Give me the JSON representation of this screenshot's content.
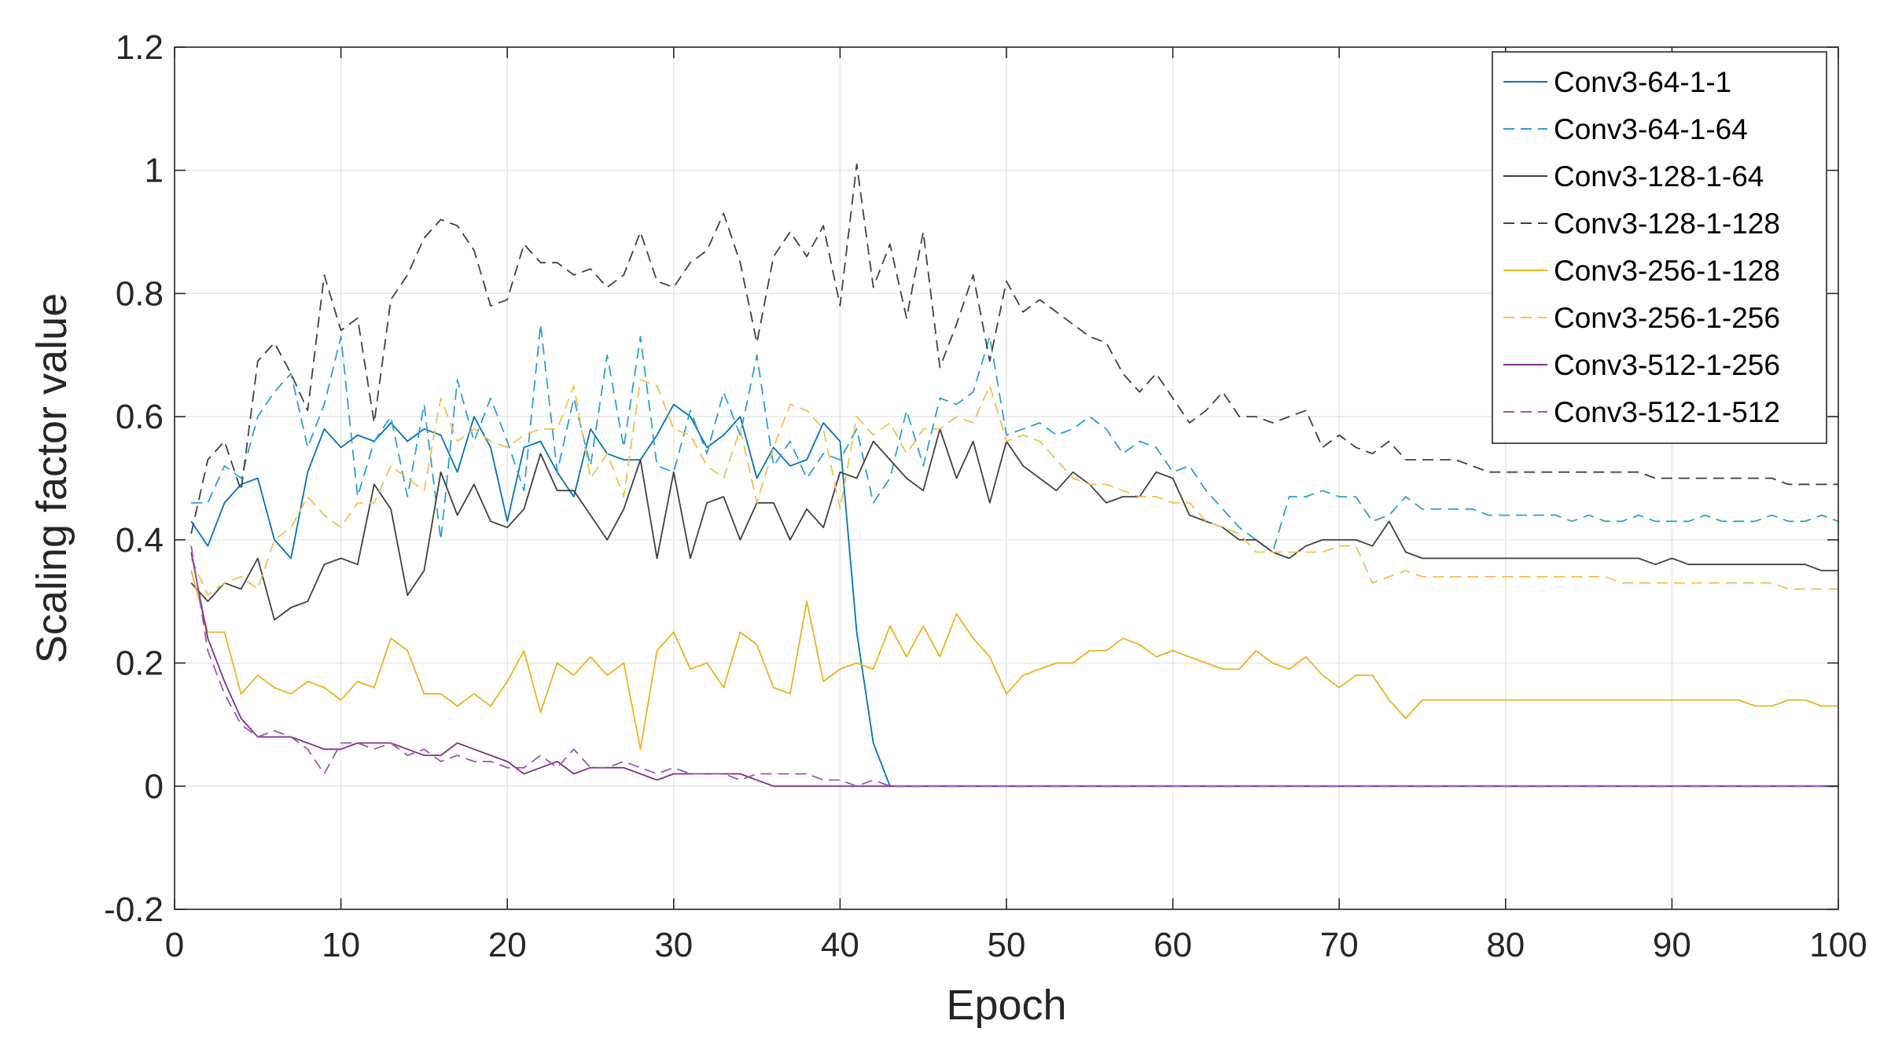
{
  "chart_data": {
    "type": "line",
    "title": "",
    "xlabel": "Epoch",
    "ylabel": "Scaling factor value",
    "xlim": [
      0,
      100
    ],
    "ylim": [
      -0.2,
      1.2
    ],
    "xticks": [
      0,
      10,
      20,
      30,
      40,
      50,
      60,
      70,
      80,
      90,
      100
    ],
    "yticks": [
      -0.2,
      0,
      0.2,
      0.4,
      0.6,
      0.8,
      1,
      1.2
    ],
    "xtick_labels": [
      "0",
      "10",
      "20",
      "30",
      "40",
      "50",
      "60",
      "70",
      "80",
      "90",
      "100"
    ],
    "ytick_labels": [
      "-0.2",
      "0",
      "0.2",
      "0.4",
      "0.6",
      "0.8",
      "1",
      "1.2"
    ],
    "grid": true,
    "legend_position": "top-right",
    "series": [
      {
        "name": "Conv3-64-1-1",
        "color": "#0072bd",
        "dash": "solid",
        "values": [
          0.43,
          0.39,
          0.46,
          0.49,
          0.5,
          0.4,
          0.37,
          0.51,
          0.58,
          0.55,
          0.57,
          0.56,
          0.59,
          0.56,
          0.58,
          0.57,
          0.51,
          0.6,
          0.55,
          0.43,
          0.55,
          0.56,
          0.51,
          0.47,
          0.58,
          0.54,
          0.53,
          0.53,
          0.57,
          0.62,
          0.6,
          0.55,
          0.57,
          0.6,
          0.5,
          0.55,
          0.52,
          0.53,
          0.59,
          0.56,
          0.25,
          0.07,
          0.0,
          0,
          0,
          0,
          0,
          0,
          0,
          0,
          0,
          0,
          0,
          0,
          0,
          0,
          0,
          0,
          0,
          0,
          0,
          0,
          0,
          0,
          0,
          0,
          0,
          0,
          0,
          0,
          0,
          0,
          0,
          0,
          0,
          0,
          0,
          0,
          0,
          0,
          0,
          0,
          0,
          0,
          0,
          0,
          0,
          0,
          0,
          0,
          0,
          0,
          0,
          0,
          0,
          0,
          0,
          0,
          0,
          0
        ]
      },
      {
        "name": "Conv3-64-1-64",
        "color": "#2b9fd6",
        "dash": "dashed",
        "values": [
          0.46,
          0.46,
          0.52,
          0.5,
          0.6,
          0.64,
          0.67,
          0.55,
          0.62,
          0.73,
          0.47,
          0.56,
          0.6,
          0.47,
          0.62,
          0.4,
          0.66,
          0.56,
          0.63,
          0.56,
          0.48,
          0.75,
          0.51,
          0.63,
          0.52,
          0.7,
          0.55,
          0.73,
          0.52,
          0.51,
          0.61,
          0.54,
          0.64,
          0.57,
          0.7,
          0.52,
          0.56,
          0.5,
          0.54,
          0.53,
          0.58,
          0.46,
          0.5,
          0.61,
          0.52,
          0.63,
          0.62,
          0.64,
          0.73,
          0.57,
          0.58,
          0.59,
          0.57,
          0.58,
          0.6,
          0.58,
          0.54,
          0.56,
          0.55,
          0.51,
          0.52,
          0.48,
          0.45,
          0.42,
          0.4,
          0.38,
          0.47,
          0.47,
          0.48,
          0.47,
          0.47,
          0.43,
          0.44,
          0.47,
          0.45,
          0.45,
          0.45,
          0.45,
          0.44,
          0.44,
          0.44,
          0.44,
          0.44,
          0.43,
          0.44,
          0.43,
          0.43,
          0.44,
          0.43,
          0.43,
          0.43,
          0.44,
          0.43,
          0.43,
          0.43,
          0.44,
          0.43,
          0.43,
          0.44,
          0.43
        ]
      },
      {
        "name": "Conv3-128-1-64",
        "color": "#404040",
        "dash": "solid",
        "values": [
          0.33,
          0.3,
          0.33,
          0.32,
          0.37,
          0.27,
          0.29,
          0.3,
          0.36,
          0.37,
          0.36,
          0.49,
          0.45,
          0.31,
          0.35,
          0.51,
          0.44,
          0.49,
          0.43,
          0.42,
          0.45,
          0.54,
          0.48,
          0.48,
          0.44,
          0.4,
          0.45,
          0.53,
          0.37,
          0.51,
          0.37,
          0.46,
          0.47,
          0.4,
          0.46,
          0.46,
          0.4,
          0.45,
          0.42,
          0.51,
          0.5,
          0.56,
          0.53,
          0.5,
          0.48,
          0.58,
          0.5,
          0.56,
          0.46,
          0.56,
          0.52,
          0.5,
          0.48,
          0.51,
          0.49,
          0.46,
          0.47,
          0.47,
          0.51,
          0.5,
          0.44,
          0.43,
          0.42,
          0.4,
          0.4,
          0.38,
          0.37,
          0.39,
          0.4,
          0.4,
          0.4,
          0.39,
          0.43,
          0.38,
          0.37,
          0.37,
          0.37,
          0.37,
          0.37,
          0.37,
          0.37,
          0.37,
          0.37,
          0.37,
          0.37,
          0.37,
          0.37,
          0.37,
          0.36,
          0.37,
          0.36,
          0.36,
          0.36,
          0.36,
          0.36,
          0.36,
          0.36,
          0.36,
          0.35,
          0.35
        ]
      },
      {
        "name": "Conv3-128-1-128",
        "color": "#404040",
        "dash": "dashed",
        "values": [
          0.41,
          0.53,
          0.56,
          0.48,
          0.69,
          0.72,
          0.67,
          0.61,
          0.83,
          0.74,
          0.76,
          0.59,
          0.79,
          0.83,
          0.89,
          0.92,
          0.91,
          0.87,
          0.78,
          0.79,
          0.88,
          0.85,
          0.85,
          0.83,
          0.84,
          0.81,
          0.83,
          0.9,
          0.82,
          0.81,
          0.85,
          0.87,
          0.93,
          0.85,
          0.72,
          0.86,
          0.9,
          0.86,
          0.91,
          0.78,
          1.01,
          0.81,
          0.88,
          0.76,
          0.9,
          0.68,
          0.75,
          0.83,
          0.69,
          0.82,
          0.77,
          0.79,
          0.77,
          0.75,
          0.73,
          0.72,
          0.67,
          0.64,
          0.67,
          0.63,
          0.59,
          0.61,
          0.64,
          0.6,
          0.6,
          0.59,
          0.6,
          0.61,
          0.55,
          0.57,
          0.55,
          0.54,
          0.56,
          0.53,
          0.53,
          0.53,
          0.53,
          0.52,
          0.51,
          0.51,
          0.51,
          0.51,
          0.51,
          0.51,
          0.51,
          0.51,
          0.51,
          0.51,
          0.5,
          0.5,
          0.5,
          0.5,
          0.5,
          0.5,
          0.5,
          0.5,
          0.49,
          0.49,
          0.49,
          0.49
        ]
      },
      {
        "name": "Conv3-256-1-128",
        "color": "#edb120",
        "dash": "solid",
        "values": [
          0.35,
          0.25,
          0.25,
          0.15,
          0.18,
          0.16,
          0.15,
          0.17,
          0.16,
          0.14,
          0.17,
          0.16,
          0.24,
          0.22,
          0.15,
          0.15,
          0.13,
          0.15,
          0.13,
          0.17,
          0.22,
          0.12,
          0.2,
          0.18,
          0.21,
          0.18,
          0.2,
          0.06,
          0.22,
          0.25,
          0.19,
          0.2,
          0.16,
          0.25,
          0.23,
          0.16,
          0.15,
          0.3,
          0.17,
          0.19,
          0.2,
          0.19,
          0.26,
          0.21,
          0.26,
          0.21,
          0.28,
          0.24,
          0.21,
          0.15,
          0.18,
          0.19,
          0.2,
          0.2,
          0.22,
          0.22,
          0.24,
          0.23,
          0.21,
          0.22,
          0.21,
          0.2,
          0.19,
          0.19,
          0.22,
          0.2,
          0.19,
          0.21,
          0.18,
          0.16,
          0.18,
          0.18,
          0.14,
          0.11,
          0.14,
          0.14,
          0.14,
          0.14,
          0.14,
          0.14,
          0.14,
          0.14,
          0.14,
          0.14,
          0.14,
          0.14,
          0.14,
          0.14,
          0.14,
          0.14,
          0.14,
          0.14,
          0.14,
          0.14,
          0.13,
          0.13,
          0.14,
          0.14,
          0.13,
          0.13
        ]
      },
      {
        "name": "Conv3-256-1-256",
        "color": "#f2c04a",
        "dash": "dashed",
        "values": [
          0.37,
          0.31,
          0.33,
          0.34,
          0.32,
          0.4,
          0.42,
          0.47,
          0.44,
          0.42,
          0.46,
          0.46,
          0.52,
          0.5,
          0.48,
          0.63,
          0.56,
          0.58,
          0.56,
          0.55,
          0.57,
          0.58,
          0.58,
          0.65,
          0.5,
          0.54,
          0.47,
          0.66,
          0.65,
          0.58,
          0.57,
          0.52,
          0.5,
          0.58,
          0.46,
          0.55,
          0.62,
          0.61,
          0.58,
          0.45,
          0.6,
          0.57,
          0.59,
          0.54,
          0.58,
          0.58,
          0.6,
          0.59,
          0.65,
          0.56,
          0.57,
          0.56,
          0.53,
          0.5,
          0.49,
          0.49,
          0.48,
          0.47,
          0.47,
          0.46,
          0.46,
          0.43,
          0.42,
          0.41,
          0.38,
          0.38,
          0.38,
          0.38,
          0.38,
          0.39,
          0.39,
          0.33,
          0.34,
          0.35,
          0.34,
          0.34,
          0.34,
          0.34,
          0.34,
          0.34,
          0.34,
          0.34,
          0.34,
          0.34,
          0.34,
          0.34,
          0.33,
          0.33,
          0.33,
          0.33,
          0.33,
          0.33,
          0.33,
          0.33,
          0.33,
          0.33,
          0.32,
          0.32,
          0.32,
          0.32
        ]
      },
      {
        "name": "Conv3-512-1-256",
        "color": "#7e2f8e",
        "dash": "solid",
        "values": [
          0.38,
          0.24,
          0.17,
          0.11,
          0.08,
          0.08,
          0.08,
          0.07,
          0.06,
          0.06,
          0.07,
          0.07,
          0.07,
          0.06,
          0.05,
          0.05,
          0.07,
          0.06,
          0.05,
          0.04,
          0.02,
          0.03,
          0.04,
          0.02,
          0.03,
          0.03,
          0.03,
          0.02,
          0.01,
          0.02,
          0.02,
          0.02,
          0.02,
          0.02,
          0.01,
          0.0,
          0,
          0,
          0,
          0,
          0,
          0,
          0,
          0,
          0,
          0,
          0,
          0,
          0,
          0,
          0,
          0,
          0,
          0,
          0,
          0,
          0,
          0,
          0,
          0,
          0,
          0,
          0,
          0,
          0,
          0,
          0,
          0,
          0,
          0,
          0,
          0,
          0,
          0,
          0,
          0,
          0,
          0,
          0,
          0,
          0,
          0,
          0,
          0,
          0,
          0,
          0,
          0,
          0,
          0,
          0,
          0,
          0,
          0,
          0,
          0,
          0,
          0,
          0,
          0
        ]
      },
      {
        "name": "Conv3-512-1-512",
        "color": "#9d54b4",
        "dash": "dashed",
        "values": [
          0.39,
          0.22,
          0.15,
          0.1,
          0.08,
          0.09,
          0.08,
          0.06,
          0.02,
          0.07,
          0.07,
          0.06,
          0.07,
          0.05,
          0.06,
          0.04,
          0.05,
          0.04,
          0.04,
          0.03,
          0.03,
          0.05,
          0.03,
          0.06,
          0.03,
          0.03,
          0.04,
          0.03,
          0.02,
          0.03,
          0.02,
          0.02,
          0.02,
          0.01,
          0.02,
          0.02,
          0.02,
          0.02,
          0.01,
          0.01,
          0.0,
          0.01,
          0.0,
          0.0,
          0.0,
          0,
          0,
          0,
          0,
          0,
          0,
          0,
          0,
          0,
          0,
          0,
          0,
          0,
          0,
          0,
          0,
          0,
          0,
          0,
          0,
          0,
          0,
          0,
          0,
          0,
          0,
          0,
          0,
          0,
          0,
          0,
          0,
          0,
          0,
          0,
          0,
          0,
          0,
          0,
          0,
          0,
          0,
          0,
          0,
          0,
          0,
          0,
          0,
          0,
          0,
          0,
          0,
          0,
          0,
          0
        ]
      }
    ]
  }
}
